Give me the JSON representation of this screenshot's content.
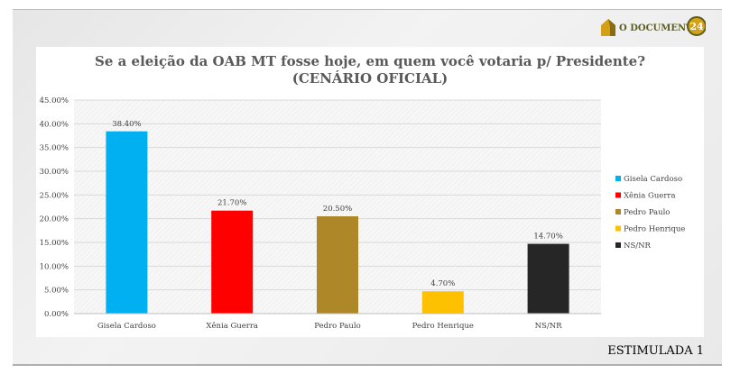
{
  "logo": {
    "text": "O DOCUMENTO",
    "badge": "24",
    "colors": {
      "brand_green": "#5a5f1e",
      "brand_gold": "#d4a017"
    }
  },
  "footer": {
    "label": "ESTIMULADA 1"
  },
  "chart_data": {
    "type": "bar",
    "title": "Se a eleição da OAB MT fosse hoje, em quem você votaria p/ Presidente?",
    "subtitle": "(CENÁRIO OFICIAL)",
    "xlabel": "",
    "ylabel": "",
    "categories": [
      "Gisela Cardoso",
      "Xênia Guerra",
      "Pedro Paulo",
      "Pedro Henrique",
      "NS/NR"
    ],
    "values": [
      38.4,
      21.7,
      20.5,
      4.7,
      14.7
    ],
    "data_labels": [
      "38.40%",
      "21.70%",
      "20.50%",
      "4.70%",
      "14.70%"
    ],
    "colors": [
      "#00b0f0",
      "#ff0000",
      "#ae8728",
      "#ffc000",
      "#262626"
    ],
    "ylim": [
      0,
      45
    ],
    "yticks": [
      "0.00%",
      "5.00%",
      "10.00%",
      "15.00%",
      "20.00%",
      "25.00%",
      "30.00%",
      "35.00%",
      "40.00%",
      "45.00%"
    ],
    "ytick_values": [
      0,
      5,
      10,
      15,
      20,
      25,
      30,
      35,
      40,
      45
    ],
    "grid": true,
    "legend": {
      "placement": "right",
      "entries": [
        "Gisela Cardoso",
        "Xênia Guerra",
        "Pedro Paulo",
        "Pedro Henrique",
        "NS/NR"
      ]
    }
  }
}
